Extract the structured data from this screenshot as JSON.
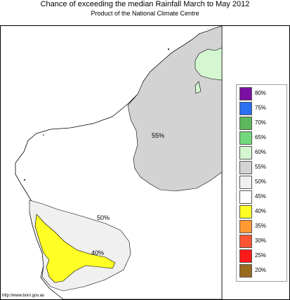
{
  "header": {
    "title": "Chance of exceeding the median Rainfall March to May 2012",
    "subtitle": "Product of the National Climate Centre"
  },
  "map": {
    "labels": {
      "contour_55": "55%",
      "contour_50": "50%",
      "contour_40": "40%"
    }
  },
  "legend": {
    "items": [
      {
        "label": "80%",
        "color": "#7b0fa3"
      },
      {
        "label": "75%",
        "color": "#2b6ff2"
      },
      {
        "label": "70%",
        "color": "#5db85c"
      },
      {
        "label": "65%",
        "color": "#72d87c"
      },
      {
        "label": "60%",
        "color": "#d4f7d2"
      },
      {
        "label": "55%",
        "color": "#d3d3d3"
      },
      {
        "label": "50%",
        "color": "#f0f0f0"
      },
      {
        "label": "45%",
        "color": "#ffffff"
      },
      {
        "label": "40%",
        "color": "#ffff26"
      },
      {
        "label": "35%",
        "color": "#ff9933"
      },
      {
        "label": "30%",
        "color": "#ff5533"
      },
      {
        "label": "25%",
        "color": "#ff1a1a"
      },
      {
        "label": "20%",
        "color": "#9a6b1f"
      }
    ]
  },
  "footer": {
    "url": "http://www.bom.gov.au"
  }
}
